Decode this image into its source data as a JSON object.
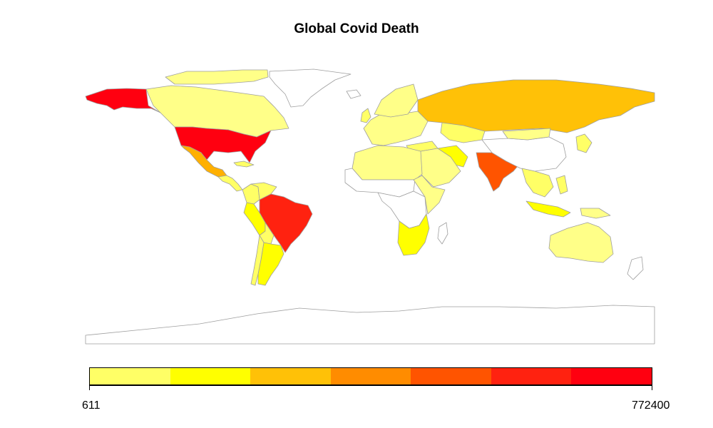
{
  "title": "Global Covid Death",
  "legend": {
    "min_label": "611",
    "max_label": "772400",
    "colors": [
      "#FFFF66",
      "#FFFF00",
      "#FFC107",
      "#FF8C00",
      "#FF5400",
      "#FF2210",
      "#FF0010"
    ]
  },
  "map": {
    "border_color": "#9e9e9e",
    "no_data_color": "#ffffff",
    "regions": [
      {
        "name": "Greenland",
        "fill": "#ffffff"
      },
      {
        "name": "Canada",
        "fill": "#FFFF88"
      },
      {
        "name": "Canadian Arctic Islands",
        "fill": "#FFFF88"
      },
      {
        "name": "Alaska",
        "fill": "#FF0010"
      },
      {
        "name": "United States",
        "fill": "#FF0010"
      },
      {
        "name": "Mexico",
        "fill": "#FFB000"
      },
      {
        "name": "Central America",
        "fill": "#FFFF66"
      },
      {
        "name": "Cuba",
        "fill": "#FFFF66"
      },
      {
        "name": "Colombia",
        "fill": "#FFFF66"
      },
      {
        "name": "Venezuela",
        "fill": "#FFFF66"
      },
      {
        "name": "Peru",
        "fill": "#FFFF00"
      },
      {
        "name": "Brazil",
        "fill": "#FF2210"
      },
      {
        "name": "Bolivia",
        "fill": "#FFFF66"
      },
      {
        "name": "Argentina",
        "fill": "#FFFF00"
      },
      {
        "name": "Chile",
        "fill": "#FFFF66"
      },
      {
        "name": "Europe",
        "fill": "#FFFF88"
      },
      {
        "name": "United Kingdom",
        "fill": "#FFFF66"
      },
      {
        "name": "Iceland",
        "fill": "#ffffff"
      },
      {
        "name": "Scandinavia",
        "fill": "#FFFF88"
      },
      {
        "name": "Russia",
        "fill": "#FFC107"
      },
      {
        "name": "Kazakhstan",
        "fill": "#FFFF66"
      },
      {
        "name": "Turkey",
        "fill": "#FFFF66"
      },
      {
        "name": "Iran",
        "fill": "#FFFF00"
      },
      {
        "name": "Middle East",
        "fill": "#FFFF88"
      },
      {
        "name": "North Africa",
        "fill": "#FFFF88"
      },
      {
        "name": "Sahel",
        "fill": "#ffffff"
      },
      {
        "name": "Central Africa",
        "fill": "#ffffff"
      },
      {
        "name": "East Africa",
        "fill": "#FFFF88"
      },
      {
        "name": "South Africa",
        "fill": "#FFFF00"
      },
      {
        "name": "Madagascar",
        "fill": "#ffffff"
      },
      {
        "name": "India",
        "fill": "#FF5400"
      },
      {
        "name": "China",
        "fill": "#ffffff"
      },
      {
        "name": "Mongolia",
        "fill": "#FFFF88"
      },
      {
        "name": "Southeast Asia",
        "fill": "#FFFF66"
      },
      {
        "name": "Japan",
        "fill": "#FFFF66"
      },
      {
        "name": "Indonesia",
        "fill": "#FFFF00"
      },
      {
        "name": "Philippines",
        "fill": "#FFFF66"
      },
      {
        "name": "Papua New Guinea",
        "fill": "#FFFF88"
      },
      {
        "name": "Australia",
        "fill": "#FFFF88"
      },
      {
        "name": "New Zealand",
        "fill": "#ffffff"
      },
      {
        "name": "Antarctica",
        "fill": "#ffffff"
      }
    ]
  }
}
